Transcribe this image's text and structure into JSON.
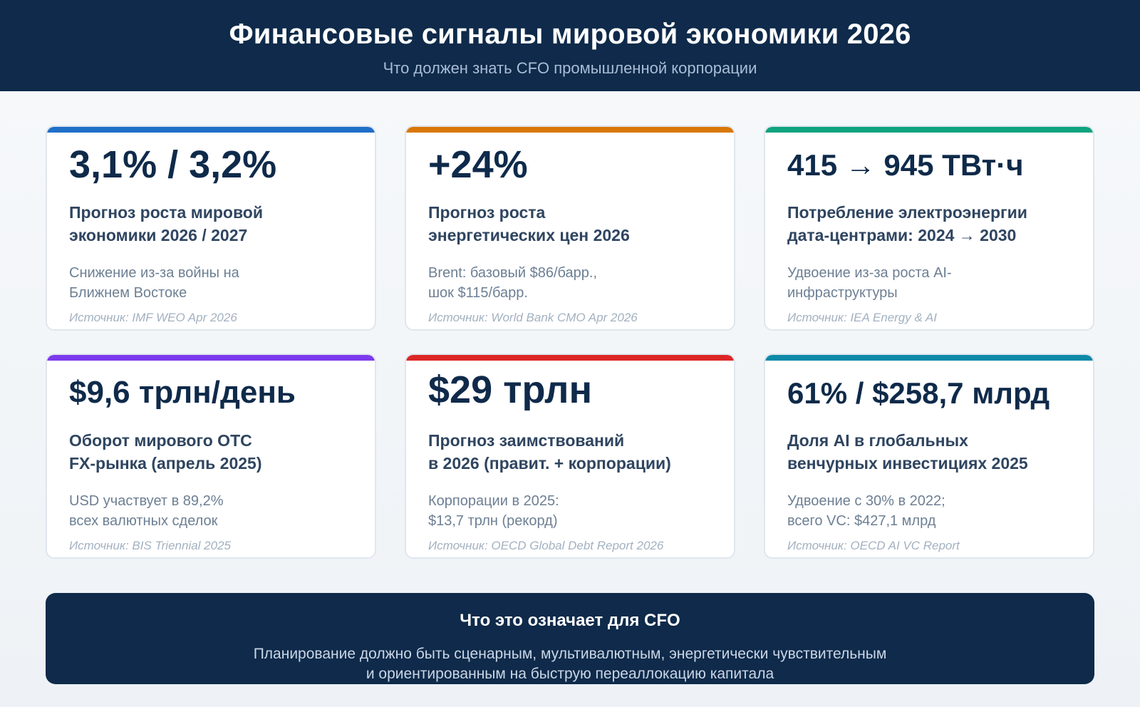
{
  "header": {
    "title": "Финансовые сигналы мировой экономики 2026",
    "subtitle": "Что должен знать CFO промышленной корпорации"
  },
  "cards": [
    {
      "value": "3,1% / 3,2%",
      "label_line1": "Прогноз роста мировой",
      "label_line2": "экономики 2026 / 2027",
      "note_line1": "Снижение из-за войны на",
      "note_line2": "Ближнем Востоке",
      "source": "Источник: IMF WEO Apr 2026",
      "accent_color": "#1f6fc9"
    },
    {
      "value": "+24%",
      "label_line1": "Прогноз роста",
      "label_line2": "энергетических цен 2026",
      "note_line1": "Brent: базовый $86/барр.,",
      "note_line2": "шок $115/барр.",
      "source": "Источник: World Bank CMO Apr 2026",
      "accent_color": "#d97706"
    },
    {
      "value": "415 → 945 ТВт·ч",
      "label_line1": "Потребление электроэнергии",
      "label_line2": "дата-центрами: 2024 → 2030",
      "note_line1": "Удвоение из-за роста AI-",
      "note_line2": "инфраструктуры",
      "source": "Источник: IEA Energy & AI",
      "accent_color": "#0fa37f"
    },
    {
      "value": "$9,6 трлн/день",
      "label_line1": "Оборот мирового OTC",
      "label_line2": "FX-рынка (апрель 2025)",
      "note_line1": "USD участвует в 89,2%",
      "note_line2": "всех валютных сделок",
      "source": "Источник: BIS Triennial 2025",
      "accent_color": "#7c3aed"
    },
    {
      "value": "$29 трлн",
      "label_line1": "Прогноз заимствований",
      "label_line2": "в 2026 (правит. + корпорации)",
      "note_line1": "Корпорации в 2025:",
      "note_line2": "$13,7 трлн (рекорд)",
      "source": "Источник: OECD Global Debt Report 2026",
      "accent_color": "#dc2626"
    },
    {
      "value": "61% / $258,7 млрд",
      "label_line1": "Доля AI в глобальных",
      "label_line2": "венчурных инвестициях 2025",
      "note_line1": "Удвоение с 30% в 2022;",
      "note_line2": "всего VC: $427,1 млрд",
      "source": "Источник: OECD AI VC Report",
      "accent_color": "#0e8aa8"
    }
  ],
  "footer": {
    "title": "Что это означает для CFO",
    "text_line1": "Планирование должно быть сценарным, мультивалютным, энергетически чувствительным",
    "text_line2": "и ориентированным на быструю переаллокацию капитала"
  }
}
